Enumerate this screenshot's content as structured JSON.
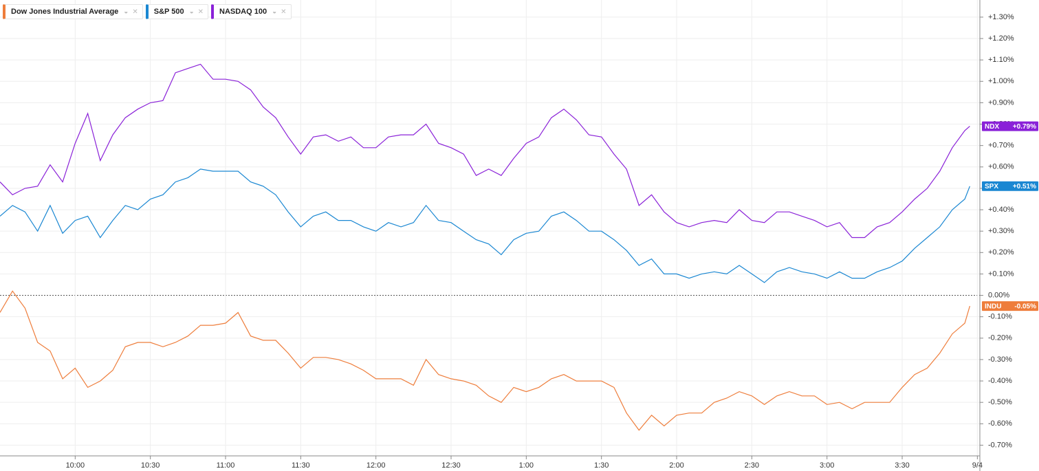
{
  "chart_data": {
    "type": "line",
    "x": [
      0,
      5,
      10,
      15,
      20,
      25,
      30,
      35,
      40,
      45,
      50,
      55,
      60,
      65,
      70,
      75,
      80,
      85,
      90,
      95,
      100,
      105,
      110,
      115,
      120,
      125,
      130,
      135,
      140,
      145,
      150,
      155,
      160,
      165,
      170,
      175,
      180,
      185,
      190,
      195,
      200,
      205,
      210,
      215,
      220,
      225,
      230,
      235,
      240,
      245,
      250,
      255,
      260,
      265,
      270,
      275,
      280,
      285,
      290,
      295,
      300,
      305,
      310,
      315,
      320,
      325,
      330,
      335,
      340,
      345,
      350,
      355,
      360,
      365,
      370,
      375,
      380,
      385,
      387
    ],
    "xlim": [
      0,
      391
    ],
    "xticks": [
      {
        "value": 30,
        "label": "10:00"
      },
      {
        "value": 60,
        "label": "10:30"
      },
      {
        "value": 90,
        "label": "11:00"
      },
      {
        "value": 120,
        "label": "11:30"
      },
      {
        "value": 150,
        "label": "12:00"
      },
      {
        "value": 180,
        "label": "12:30"
      },
      {
        "value": 210,
        "label": "1:00"
      },
      {
        "value": 240,
        "label": "1:30"
      },
      {
        "value": 270,
        "label": "2:00"
      },
      {
        "value": 300,
        "label": "2:30"
      },
      {
        "value": 330,
        "label": "3:00"
      },
      {
        "value": 360,
        "label": "3:30"
      },
      {
        "value": 390,
        "label": "9/4"
      }
    ],
    "ylim": [
      -0.75,
      1.38
    ],
    "yticks": [
      {
        "value": 1.3,
        "label": "+1.30%"
      },
      {
        "value": 1.2,
        "label": "+1.20%"
      },
      {
        "value": 1.1,
        "label": "+1.10%"
      },
      {
        "value": 1.0,
        "label": "+1.00%"
      },
      {
        "value": 0.9,
        "label": "+0.90%"
      },
      {
        "value": 0.8,
        "label": "+0.80%"
      },
      {
        "value": 0.7,
        "label": "+0.70%"
      },
      {
        "value": 0.6,
        "label": "+0.60%"
      },
      {
        "value": 0.5,
        "label": "+0.50%"
      },
      {
        "value": 0.4,
        "label": "+0.40%"
      },
      {
        "value": 0.3,
        "label": "+0.30%"
      },
      {
        "value": 0.2,
        "label": "+0.20%"
      },
      {
        "value": 0.1,
        "label": "+0.10%"
      },
      {
        "value": 0,
        "label": "0.00%"
      },
      {
        "value": -0.1,
        "label": "-0.10%"
      },
      {
        "value": -0.2,
        "label": "-0.20%"
      },
      {
        "value": -0.3,
        "label": "-0.30%"
      },
      {
        "value": -0.4,
        "label": "-0.40%"
      },
      {
        "value": -0.5,
        "label": "-0.50%"
      },
      {
        "value": -0.6,
        "label": "-0.60%"
      },
      {
        "value": -0.7,
        "label": "-0.70%"
      }
    ],
    "grid": true,
    "series": [
      {
        "name": "Dow Jones Industrial Average",
        "color": "#ee7d3b",
        "badge": {
          "symbol": "INDU",
          "label": "-0.05%"
        },
        "values": [
          -0.08,
          0.02,
          -0.06,
          -0.22,
          -0.26,
          -0.39,
          -0.34,
          -0.43,
          -0.4,
          -0.35,
          -0.24,
          -0.22,
          -0.22,
          -0.24,
          -0.22,
          -0.19,
          -0.14,
          -0.14,
          -0.13,
          -0.08,
          -0.19,
          -0.21,
          -0.21,
          -0.27,
          -0.34,
          -0.29,
          -0.29,
          -0.3,
          -0.32,
          -0.35,
          -0.39,
          -0.39,
          -0.39,
          -0.42,
          -0.3,
          -0.37,
          -0.39,
          -0.4,
          -0.42,
          -0.47,
          -0.5,
          -0.43,
          -0.45,
          -0.43,
          -0.39,
          -0.37,
          -0.4,
          -0.4,
          -0.4,
          -0.43,
          -0.55,
          -0.63,
          -0.56,
          -0.61,
          -0.56,
          -0.55,
          -0.55,
          -0.5,
          -0.48,
          -0.45,
          -0.47,
          -0.51,
          -0.47,
          -0.45,
          -0.47,
          -0.47,
          -0.51,
          -0.5,
          -0.53,
          -0.5,
          -0.5,
          -0.5,
          -0.43,
          -0.37,
          -0.34,
          -0.27,
          -0.18,
          -0.13,
          -0.05
        ]
      },
      {
        "name": "S&P 500",
        "color": "#1a87d2",
        "badge": {
          "symbol": "SPX",
          "label": "+0.51%"
        },
        "values": [
          0.37,
          0.42,
          0.39,
          0.3,
          0.42,
          0.29,
          0.35,
          0.37,
          0.27,
          0.35,
          0.42,
          0.4,
          0.45,
          0.47,
          0.53,
          0.55,
          0.59,
          0.58,
          0.58,
          0.58,
          0.53,
          0.51,
          0.47,
          0.39,
          0.32,
          0.37,
          0.39,
          0.35,
          0.35,
          0.32,
          0.3,
          0.34,
          0.32,
          0.34,
          0.42,
          0.35,
          0.34,
          0.3,
          0.26,
          0.24,
          0.19,
          0.26,
          0.29,
          0.3,
          0.37,
          0.39,
          0.35,
          0.3,
          0.3,
          0.26,
          0.21,
          0.14,
          0.17,
          0.1,
          0.1,
          0.08,
          0.1,
          0.11,
          0.1,
          0.14,
          0.1,
          0.06,
          0.11,
          0.13,
          0.11,
          0.1,
          0.08,
          0.11,
          0.08,
          0.08,
          0.11,
          0.13,
          0.16,
          0.22,
          0.27,
          0.32,
          0.4,
          0.45,
          0.51
        ]
      },
      {
        "name": "NASDAQ 100",
        "color": "#8a21d8",
        "badge": {
          "symbol": "NDX",
          "label": "+0.79%"
        },
        "values": [
          0.53,
          0.47,
          0.5,
          0.51,
          0.61,
          0.53,
          0.71,
          0.85,
          0.63,
          0.75,
          0.83,
          0.87,
          0.9,
          0.91,
          1.04,
          1.06,
          1.08,
          1.01,
          1.01,
          1.0,
          0.96,
          0.88,
          0.83,
          0.74,
          0.66,
          0.74,
          0.75,
          0.72,
          0.74,
          0.69,
          0.69,
          0.74,
          0.75,
          0.75,
          0.8,
          0.71,
          0.69,
          0.66,
          0.56,
          0.59,
          0.56,
          0.64,
          0.71,
          0.74,
          0.83,
          0.87,
          0.82,
          0.75,
          0.74,
          0.66,
          0.59,
          0.42,
          0.47,
          0.39,
          0.34,
          0.32,
          0.34,
          0.35,
          0.34,
          0.4,
          0.35,
          0.34,
          0.39,
          0.39,
          0.37,
          0.35,
          0.32,
          0.34,
          0.27,
          0.27,
          0.32,
          0.34,
          0.39,
          0.45,
          0.5,
          0.58,
          0.69,
          0.77,
          0.79
        ]
      }
    ]
  }
}
